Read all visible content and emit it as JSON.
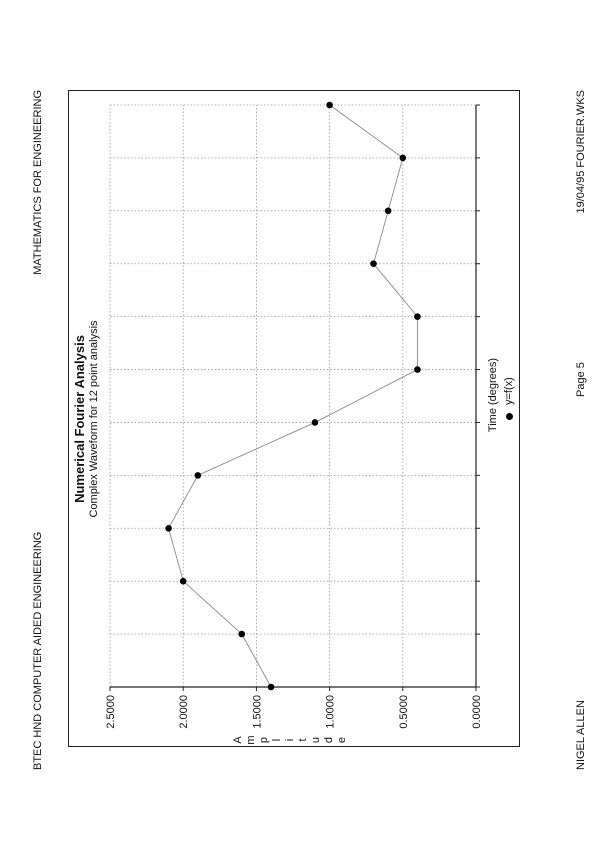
{
  "header": {
    "left": "BTEC HND COMPUTER AIDED ENGINEERING",
    "right": "MATHEMATICS FOR ENGINEERING"
  },
  "footer": {
    "left": "NIGEL ALLEN",
    "center": "Page 5",
    "right": "19/04/95 FOURIER.WKS"
  },
  "chart_data": {
    "type": "line",
    "title": "Numerical Fourier Analysis",
    "subtitle": "Complex Waveform for 12 point analysis",
    "xlabel": "Time (degrees)",
    "ylabel": "Amplitude",
    "ylabel_letters": [
      "A",
      "m",
      "p",
      "l",
      "i",
      "t",
      "u",
      "d",
      "e"
    ],
    "x": [
      1,
      2,
      3,
      4,
      5,
      6,
      7,
      8,
      9,
      10,
      11,
      12
    ],
    "series": [
      {
        "name": "y=f(x)",
        "values": [
          1.4,
          1.6,
          2.0,
          2.1,
          1.9,
          1.1,
          0.4,
          0.4,
          0.7,
          0.6,
          0.5,
          1.0
        ]
      }
    ],
    "ylim": [
      0,
      2.5
    ],
    "yticks": [
      "0.0000",
      "0.5000",
      "1.0000",
      "1.5000",
      "2.0000",
      "2.5000"
    ],
    "grid": true,
    "legend": "bottom-center",
    "colors": {
      "line": "#8a8a8a",
      "marker": "#000000",
      "grid": "#9a9a9a"
    }
  }
}
